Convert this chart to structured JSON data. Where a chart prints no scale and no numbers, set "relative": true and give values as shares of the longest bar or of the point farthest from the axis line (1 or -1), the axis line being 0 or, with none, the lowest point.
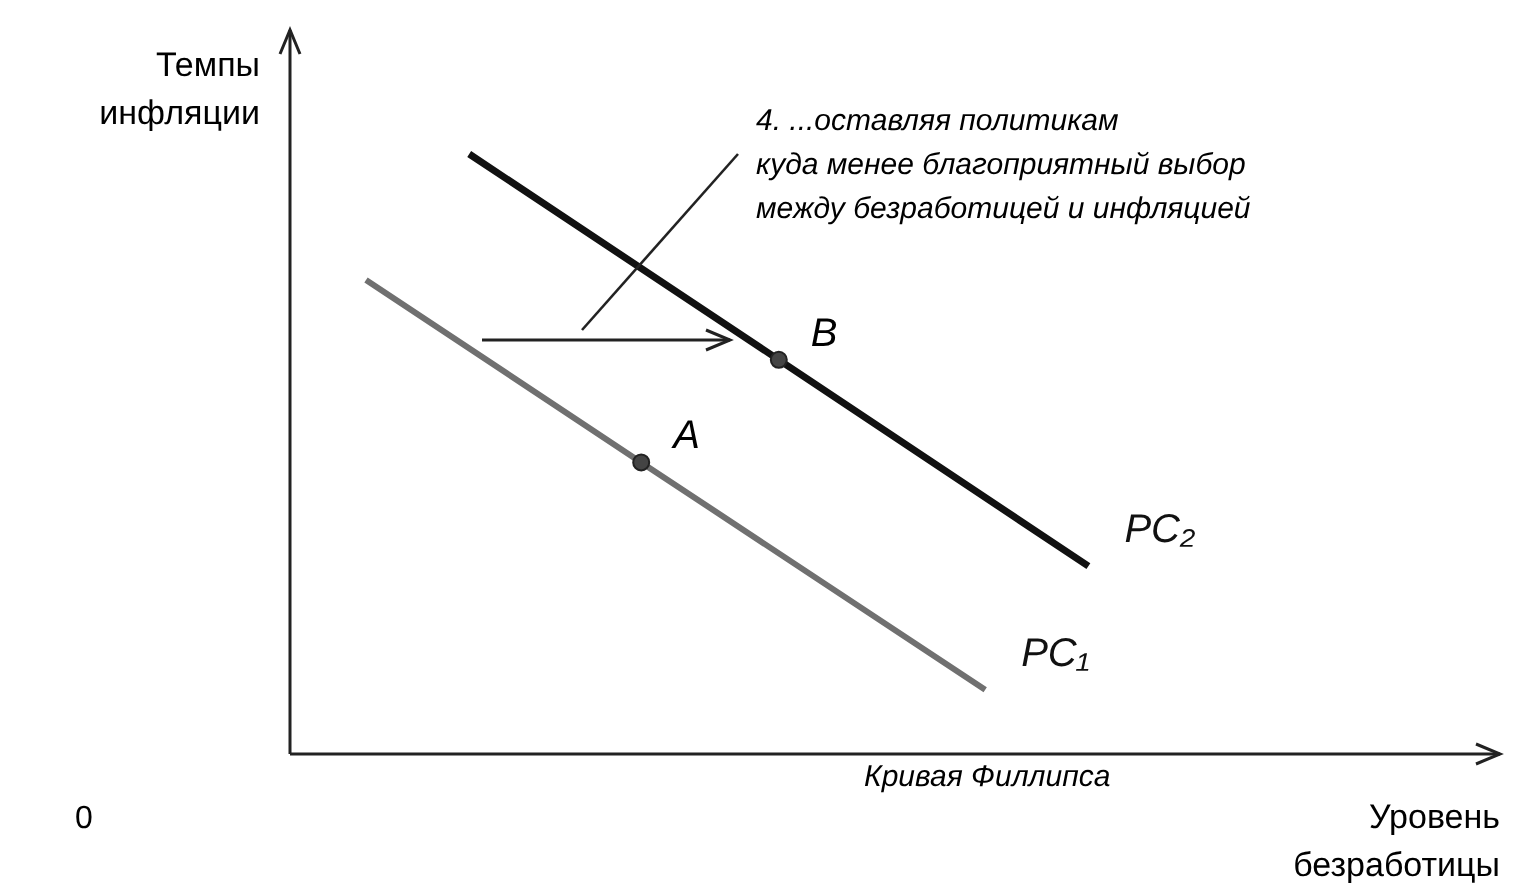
{
  "chart_data": {
    "type": "line",
    "relative": true,
    "categories": [
      null,
      null,
      null,
      null,
      null,
      null,
      null,
      null,
      null,
      null,
      null,
      null,
      null,
      null,
      null,
      null,
      null,
      null,
      null,
      null,
      null,
      null,
      null,
      null,
      null,
      null,
      null,
      null,
      null,
      null,
      null,
      null,
      null,
      null,
      null
    ],
    "xlabel": "Уровень\nбезработицы",
    "ylabel": "Темпы\nинфляции",
    "series": [
      {
        "name": "PC₁",
        "color": "#707070",
        "values": [
          null,
          null,
          0.79,
          null,
          null,
          null,
          null,
          null,
          null,
          null,
          0.486,
          null,
          null,
          null,
          null,
          null,
          null,
          null,
          null,
          null,
          0.107,
          null,
          null,
          null,
          null,
          null,
          null,
          null,
          null,
          null,
          null,
          null,
          null,
          null,
          null
        ]
      },
      {
        "name": "PC₂",
        "color": "#111111",
        "values": [
          null,
          null,
          null,
          null,
          null,
          1,
          null,
          null,
          null,
          null,
          null,
          null,
          null,
          null,
          0.657,
          null,
          null,
          null,
          null,
          null,
          null,
          null,
          null,
          0.313,
          null,
          null,
          null,
          null,
          null,
          null,
          null,
          null,
          null,
          null,
          null
        ]
      }
    ],
    "annotations": [
      "0",
      "4. ...оставляя политикам\nкуда менее благоприятный выбор\nмежду безработицей и инфляцией",
      "Кривая Филлипса",
      "A",
      "B"
    ]
  }
}
